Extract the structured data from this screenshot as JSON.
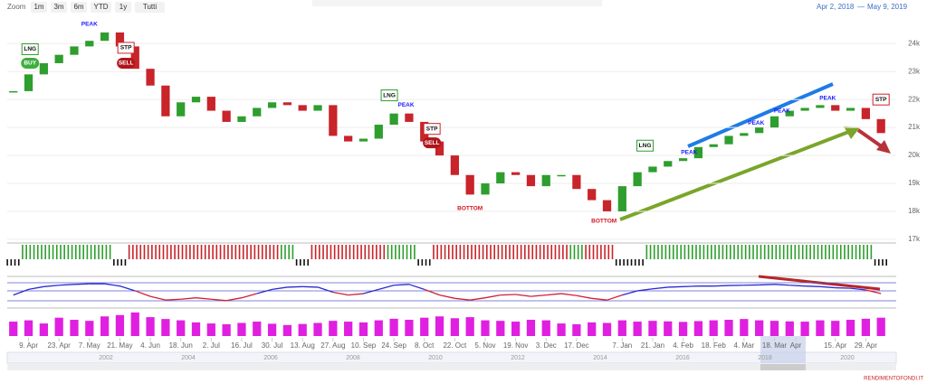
{
  "toolbar": {
    "zoom_label": "Zoom",
    "buttons": [
      "1m",
      "3m",
      "6m",
      "YTD",
      "1y",
      "Tutti"
    ],
    "range_from": "Apr 2, 2018",
    "range_sep": "—",
    "range_to": "May 9, 2019"
  },
  "watermark": "RENDIMENTOFONDI.IT",
  "navigator_labels": [
    "2002",
    "2004",
    "2006",
    "2008",
    "2010",
    "2012",
    "2014",
    "2016",
    "2018",
    "2020"
  ],
  "chart_data": {
    "type": "candlestick",
    "values": [
      22300,
      22900,
      23300,
      23600,
      23900,
      24100,
      24400,
      23900,
      23100,
      22500,
      21400,
      21900,
      22100,
      21600,
      21200,
      21400,
      21700,
      21900,
      21800,
      21600,
      21800,
      20700,
      20500,
      20600,
      21100,
      21500,
      21200,
      20500,
      20000,
      19300,
      18600,
      19000,
      19400,
      19300,
      18900,
      19300,
      19300,
      18800,
      18400,
      18000,
      18900,
      19400,
      19600,
      19800,
      19900,
      20300,
      20400,
      20700,
      20800,
      21000,
      21400,
      21600,
      21700,
      21800,
      21600,
      21700,
      21300,
      20800
    ],
    "up_color": "#2e9e2e",
    "down_color": "#c8242a",
    "xlim": [
      -0.4,
      58
    ],
    "ylim": [
      16900,
      24850
    ],
    "yticks": [
      {
        "value": 17000,
        "label": "17k"
      },
      {
        "value": 18000,
        "label": "18k"
      },
      {
        "value": 19000,
        "label": "19k"
      },
      {
        "value": 20000,
        "label": "20k"
      },
      {
        "value": 21000,
        "label": "21k"
      },
      {
        "value": 22000,
        "label": "22k"
      },
      {
        "value": 23000,
        "label": "23k"
      },
      {
        "value": 24000,
        "label": "24k"
      }
    ],
    "grid": true,
    "xticks": [
      {
        "value": 1,
        "label": "9. Apr"
      },
      {
        "value": 3,
        "label": "23. Apr"
      },
      {
        "value": 5,
        "label": "7. May"
      },
      {
        "value": 7,
        "label": "21. May"
      },
      {
        "value": 9,
        "label": "4. Jun"
      },
      {
        "value": 11,
        "label": "18. Jun"
      },
      {
        "value": 13,
        "label": "2. Jul"
      },
      {
        "value": 15,
        "label": "16. Jul"
      },
      {
        "value": 17,
        "label": "30. Jul"
      },
      {
        "value": 19,
        "label": "13. Aug"
      },
      {
        "value": 21,
        "label": "27. Aug"
      },
      {
        "value": 23,
        "label": "10. Sep"
      },
      {
        "value": 25,
        "label": "24. Sep"
      },
      {
        "value": 27,
        "label": "8. Oct"
      },
      {
        "value": 29,
        "label": "22. Oct"
      },
      {
        "value": 31,
        "label": "5. Nov"
      },
      {
        "value": 33,
        "label": "19. Nov"
      },
      {
        "value": 35,
        "label": "3. Dec"
      },
      {
        "value": 37,
        "label": "17. Dec"
      },
      {
        "value": 40,
        "label": "7. Jan"
      },
      {
        "value": 42,
        "label": "21. Jan"
      },
      {
        "value": 44,
        "label": "4. Feb"
      },
      {
        "value": 46,
        "label": "18. Feb"
      },
      {
        "value": 48,
        "label": "4. Mar"
      },
      {
        "value": 50,
        "label": "18. Mar"
      },
      {
        "value": 51.4,
        "label": "Apr"
      },
      {
        "value": 54,
        "label": "15. Apr"
      },
      {
        "value": 56,
        "label": "29. Apr"
      }
    ],
    "annotations": [
      {
        "text": "LNG",
        "x": 1.1,
        "y": 23800,
        "style": "box",
        "color": "#2e9e2e"
      },
      {
        "text": "BUY",
        "x": 1.1,
        "y": 23300,
        "style": "pill",
        "color": "#3fae3f"
      },
      {
        "text": "PEAK",
        "x": 5,
        "y": 24700,
        "style": "text",
        "color": "#1a1aff"
      },
      {
        "text": "STP",
        "x": 7.4,
        "y": 23850,
        "style": "box",
        "color": "#c8242a"
      },
      {
        "text": "SELL",
        "x": 7.4,
        "y": 23300,
        "style": "pill",
        "color": "#b0151c"
      },
      {
        "text": "LNG",
        "x": 24.7,
        "y": 22150,
        "style": "box",
        "color": "#2e9e2e"
      },
      {
        "text": "PEAK",
        "x": 25.8,
        "y": 21800,
        "style": "text",
        "color": "#1a1aff"
      },
      {
        "text": "STP",
        "x": 27.5,
        "y": 20950,
        "style": "box",
        "color": "#c8242a"
      },
      {
        "text": "SELL",
        "x": 27.5,
        "y": 20450,
        "style": "pill",
        "color": "#b0151c"
      },
      {
        "text": "BOTTOM",
        "x": 30,
        "y": 18100,
        "style": "text",
        "color": "#d0151c"
      },
      {
        "text": "BOTTOM",
        "x": 38.8,
        "y": 17650,
        "style": "text",
        "color": "#d0151c"
      },
      {
        "text": "LNG",
        "x": 41.5,
        "y": 20350,
        "style": "box",
        "color": "#2e9e2e"
      },
      {
        "text": "PEAK",
        "x": 44.4,
        "y": 20100,
        "style": "text",
        "color": "#1a1aff"
      },
      {
        "text": "PEAK",
        "x": 48.8,
        "y": 21150,
        "style": "text",
        "color": "#1a1aff"
      },
      {
        "text": "PEAK",
        "x": 50.5,
        "y": 21600,
        "style": "text",
        "color": "#1a1aff"
      },
      {
        "text": "PEAK",
        "x": 53.5,
        "y": 22050,
        "style": "text",
        "color": "#1a1aff"
      },
      {
        "text": "STP",
        "x": 57,
        "y": 22000,
        "style": "box",
        "color": "#c8242a"
      }
    ],
    "trend_colors": [
      "#111",
      "#2e9e2e",
      "#2e9e2e",
      "#2e9e2e",
      "#2e9e2e",
      "#2e9e2e",
      "#2e9e2e",
      "#111",
      "#c8242a",
      "#c8242a",
      "#c8242a",
      "#c8242a",
      "#c8242a",
      "#c8242a",
      "#c8242a",
      "#c8242a",
      "#c8242a",
      "#c8242a",
      "#2e9e2e",
      "#111",
      "#c8242a",
      "#c8242a",
      "#c8242a",
      "#c8242a",
      "#c8242a",
      "#2e9e2e",
      "#2e9e2e",
      "#111",
      "#c8242a",
      "#c8242a",
      "#c8242a",
      "#c8242a",
      "#c8242a",
      "#c8242a",
      "#c8242a",
      "#c8242a",
      "#c8242a",
      "#2e9e2e",
      "#c8242a",
      "#c8242a",
      "#111",
      "#111",
      "#2e9e2e",
      "#2e9e2e",
      "#2e9e2e",
      "#2e9e2e",
      "#2e9e2e",
      "#2e9e2e",
      "#2e9e2e",
      "#2e9e2e",
      "#2e9e2e",
      "#2e9e2e",
      "#2e9e2e",
      "#2e9e2e",
      "#2e9e2e",
      "#2e9e2e",
      "#2e9e2e",
      "#111"
    ],
    "oscillator": [
      40,
      60,
      70,
      75,
      78,
      80,
      80,
      72,
      55,
      35,
      22,
      25,
      30,
      25,
      20,
      30,
      45,
      60,
      68,
      70,
      68,
      50,
      40,
      45,
      60,
      75,
      78,
      60,
      40,
      28,
      22,
      30,
      40,
      42,
      35,
      40,
      45,
      38,
      28,
      22,
      40,
      55,
      62,
      68,
      70,
      72,
      72,
      74,
      75,
      76,
      78,
      75,
      72,
      70,
      66,
      64,
      58,
      45
    ],
    "oscillator_ylim": [
      0,
      100
    ],
    "volume": [
      55,
      60,
      48,
      70,
      62,
      58,
      75,
      80,
      90,
      72,
      65,
      60,
      52,
      48,
      45,
      50,
      55,
      47,
      42,
      46,
      50,
      58,
      55,
      52,
      60,
      66,
      62,
      70,
      75,
      68,
      72,
      60,
      58,
      55,
      62,
      60,
      48,
      45,
      52,
      50,
      60,
      55,
      58,
      56,
      54,
      57,
      60,
      62,
      65,
      60,
      58,
      56,
      55,
      60,
      58,
      62,
      66,
      70
    ],
    "volume_ylim": [
      0,
      100
    ],
    "volume_color": "#e020e0"
  }
}
